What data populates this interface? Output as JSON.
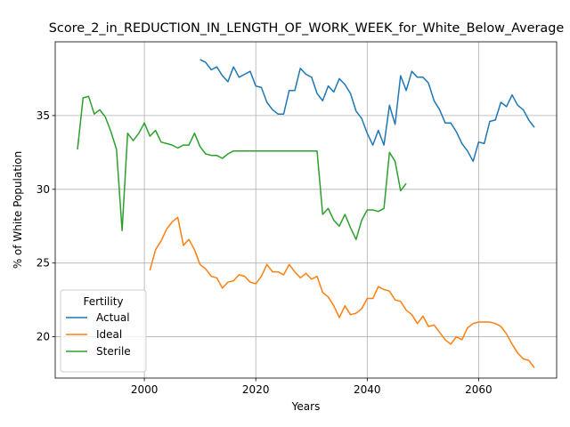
{
  "chart_data": {
    "type": "line",
    "title": "Score_2_in_REDUCTION_IN_LENGTH_OF_WORK_WEEK_for_White_Below_Average",
    "xlabel": "Years",
    "ylabel": "% of White Population",
    "xlim": [
      1984,
      2074
    ],
    "ylim": [
      17.2,
      40.0
    ],
    "xticks": [
      2000,
      2020,
      2040,
      2060
    ],
    "yticks": [
      20,
      25,
      30,
      35
    ],
    "grid": true,
    "legend": {
      "title": "Fertility",
      "position": "lower-left"
    },
    "colors": {
      "Actual": "#1f77b4",
      "Ideal": "#ff7f0e",
      "Sterile": "#2ca02c"
    },
    "series": [
      {
        "name": "Actual",
        "x": [
          2010,
          2011,
          2012,
          2013,
          2014,
          2015,
          2016,
          2017,
          2018,
          2019,
          2020,
          2021,
          2022,
          2023,
          2024,
          2025,
          2026,
          2027,
          2028,
          2029,
          2030,
          2031,
          2032,
          2033,
          2034,
          2035,
          2036,
          2037,
          2038,
          2039,
          2040,
          2041,
          2042,
          2043,
          2044,
          2045,
          2046,
          2047,
          2048,
          2049,
          2050,
          2051,
          2052,
          2053,
          2054,
          2055,
          2056,
          2057,
          2058,
          2059,
          2060,
          2061,
          2062,
          2063,
          2064,
          2065,
          2066,
          2067,
          2068,
          2069,
          2070
        ],
        "values": [
          38.8,
          38.6,
          38.1,
          38.3,
          37.7,
          37.3,
          38.3,
          37.6,
          37.8,
          38.0,
          37.0,
          36.9,
          35.9,
          35.4,
          35.1,
          35.1,
          36.7,
          36.7,
          38.2,
          37.8,
          37.6,
          36.5,
          36.0,
          37.0,
          36.6,
          37.5,
          37.1,
          36.5,
          35.3,
          34.8,
          33.8,
          33.0,
          34.0,
          33.0,
          35.7,
          34.4,
          37.7,
          36.7,
          38.0,
          37.6,
          37.6,
          37.2,
          36.0,
          35.4,
          34.5,
          34.5,
          33.9,
          33.1,
          32.6,
          31.9,
          33.2,
          33.1,
          34.6,
          34.7,
          35.9,
          35.6,
          36.4,
          35.7,
          35.4,
          34.7,
          34.2
        ]
      },
      {
        "name": "Ideal",
        "x": [
          2001,
          2002,
          2003,
          2004,
          2005,
          2006,
          2007,
          2008,
          2009,
          2010,
          2011,
          2012,
          2013,
          2014,
          2015,
          2016,
          2017,
          2018,
          2019,
          2020,
          2021,
          2022,
          2023,
          2024,
          2025,
          2026,
          2027,
          2028,
          2029,
          2030,
          2031,
          2032,
          2033,
          2034,
          2035,
          2036,
          2037,
          2038,
          2039,
          2040,
          2041,
          2042,
          2043,
          2044,
          2045,
          2046,
          2047,
          2048,
          2049,
          2050,
          2051,
          2052,
          2053,
          2054,
          2055,
          2056,
          2057,
          2058,
          2059,
          2060,
          2061,
          2062,
          2063,
          2064,
          2065,
          2066,
          2067,
          2068,
          2069,
          2070
        ],
        "values": [
          24.5,
          25.9,
          26.5,
          27.3,
          27.8,
          28.1,
          26.2,
          26.6,
          25.9,
          24.9,
          24.6,
          24.1,
          24.0,
          23.3,
          23.7,
          23.8,
          24.2,
          24.1,
          23.7,
          23.6,
          24.1,
          24.9,
          24.4,
          24.4,
          24.2,
          24.9,
          24.4,
          24.0,
          24.3,
          23.9,
          24.1,
          23.0,
          22.7,
          22.1,
          21.3,
          22.1,
          21.5,
          21.6,
          21.9,
          22.6,
          22.6,
          23.4,
          23.2,
          23.1,
          22.5,
          22.4,
          21.8,
          21.5,
          20.9,
          21.4,
          20.7,
          20.8,
          20.3,
          19.8,
          19.5,
          20.0,
          19.8,
          20.6,
          20.9,
          21.0,
          21.0,
          21.0,
          20.9,
          20.7,
          20.2,
          19.5,
          18.9,
          18.5,
          18.4,
          17.9
        ]
      },
      {
        "name": "Sterile",
        "x": [
          1988,
          1989,
          1990,
          1991,
          1992,
          1993,
          1994,
          1995,
          1996,
          1997,
          1998,
          1999,
          2000,
          2001,
          2002,
          2003,
          2004,
          2005,
          2006,
          2007,
          2008,
          2009,
          2010,
          2011,
          2012,
          2013,
          2014,
          2015,
          2016,
          2017,
          2018,
          2019,
          2020,
          2021,
          2022,
          2023,
          2024,
          2025,
          2026,
          2027,
          2028,
          2029,
          2030,
          2031,
          2032,
          2033,
          2034,
          2035,
          2036,
          2037,
          2038,
          2039,
          2040,
          2041,
          2042,
          2043,
          2044,
          2045,
          2046,
          2047
        ],
        "values": [
          32.7,
          36.2,
          36.3,
          35.1,
          35.4,
          34.9,
          33.9,
          32.7,
          27.2,
          33.8,
          33.3,
          33.8,
          34.5,
          33.6,
          34.0,
          33.2,
          33.1,
          33.0,
          32.8,
          33.0,
          33.0,
          33.8,
          32.9,
          32.4,
          32.3,
          32.3,
          32.1,
          32.4,
          32.6,
          32.6,
          32.6,
          32.6,
          32.6,
          32.6,
          32.6,
          32.6,
          32.6,
          32.6,
          32.6,
          32.6,
          32.6,
          32.6,
          32.6,
          32.6,
          28.3,
          28.7,
          27.9,
          27.5,
          28.3,
          27.4,
          26.6,
          27.9,
          28.6,
          28.6,
          28.5,
          28.7,
          32.5,
          31.9,
          29.9,
          30.4
        ]
      }
    ]
  }
}
